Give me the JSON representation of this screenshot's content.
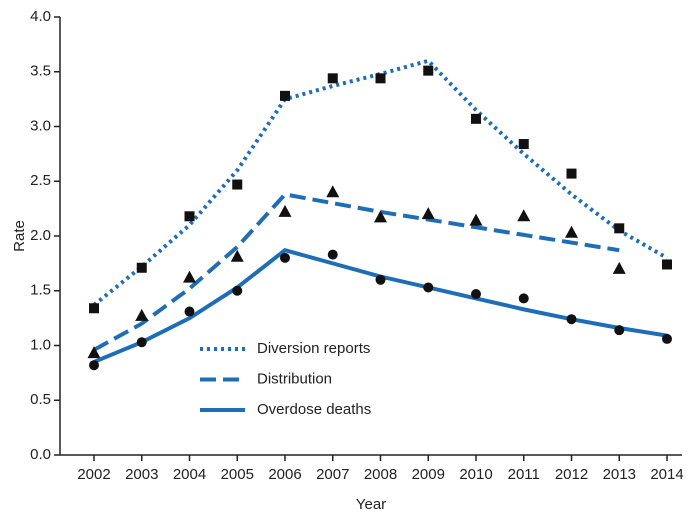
{
  "chart_data": {
    "type": "line",
    "x_label": "Year",
    "y_label": "Rate",
    "categories": [
      "2002",
      "2003",
      "2004",
      "2005",
      "2006",
      "2007",
      "2008",
      "2009",
      "2010",
      "2011",
      "2012",
      "2013",
      "2014"
    ],
    "ylim": [
      0,
      4
    ],
    "yticks": [
      {
        "value": 0,
        "label": "0.0"
      },
      0.5,
      {
        "value": 1,
        "label": "1.0"
      },
      1.5,
      {
        "value": 2,
        "label": "2.0"
      },
      2.5,
      {
        "value": 3,
        "label": "3.0"
      },
      3.5,
      {
        "value": 4,
        "label": "4.0"
      }
    ],
    "series": [
      {
        "name": "Diversion reports",
        "color": "#1f6db5",
        "line_style": "dotted",
        "marker": "square",
        "marker_color": "#111111",
        "values": [
          1.37,
          1.72,
          2.1,
          2.6,
          3.25,
          3.37,
          3.48,
          3.6,
          3.15,
          2.75,
          2.38,
          2.05,
          1.8
        ],
        "observed": [
          1.34,
          1.71,
          2.18,
          2.47,
          3.28,
          3.44,
          3.44,
          3.51,
          3.07,
          2.84,
          2.57,
          2.07,
          1.74
        ]
      },
      {
        "name": "Distribution",
        "color": "#1f6db5",
        "line_style": "dashed",
        "marker": "triangle",
        "marker_color": "#111111",
        "values": [
          0.96,
          1.2,
          1.52,
          1.9,
          2.38,
          2.3,
          2.22,
          2.15,
          2.08,
          2.01,
          1.94,
          1.87,
          null
        ],
        "observed": [
          0.93,
          1.27,
          1.62,
          1.81,
          2.22,
          2.4,
          2.17,
          2.2,
          2.14,
          2.18,
          2.03,
          1.7,
          null
        ]
      },
      {
        "name": "Overdose deaths",
        "color": "#1f6db5",
        "line_style": "solid",
        "marker": "circle",
        "marker_color": "#111111",
        "values": [
          0.85,
          1.03,
          1.25,
          1.53,
          1.87,
          1.75,
          1.63,
          1.53,
          1.43,
          1.33,
          1.24,
          1.16,
          1.09
        ],
        "observed": [
          0.82,
          1.03,
          1.31,
          1.5,
          1.8,
          1.83,
          1.6,
          1.53,
          1.47,
          1.43,
          1.24,
          1.14,
          1.06
        ]
      }
    ]
  }
}
